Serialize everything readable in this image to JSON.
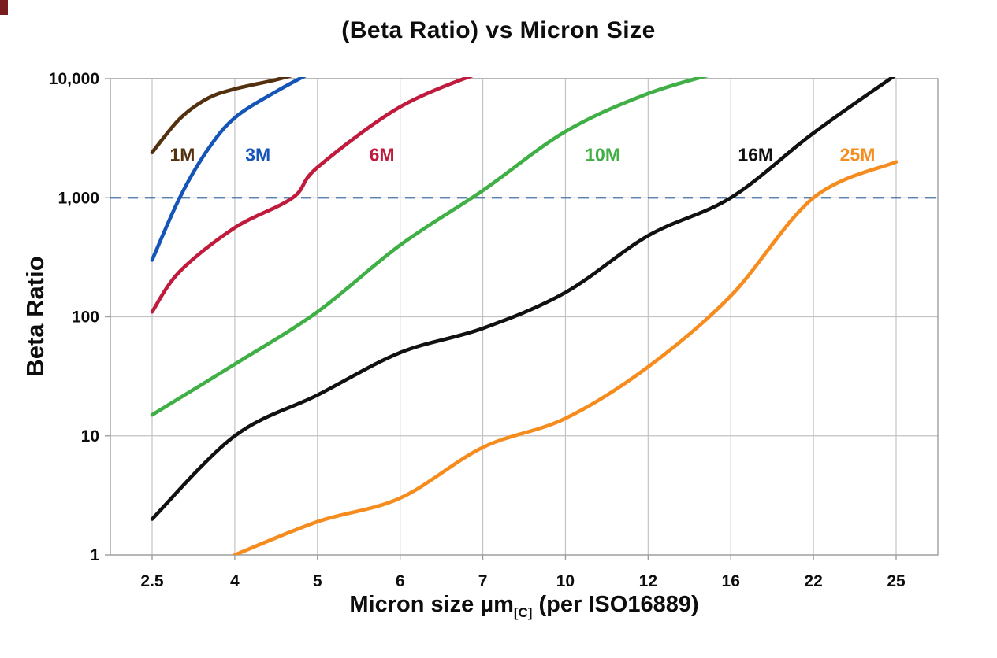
{
  "page": {
    "background": "#ffffff"
  },
  "chart_data": {
    "type": "line",
    "title": "(Beta Ratio) vs Micron Size",
    "ylabel": "Beta Ratio",
    "xlabel_main": "Micron size µm",
    "xlabel_sub": "[C]",
    "xlabel_rest": " (per ISO16889)",
    "x_scale": "categorical",
    "categories": [
      2.5,
      4,
      5,
      6,
      7,
      10,
      12,
      16,
      22,
      25
    ],
    "x_tick_labels": [
      "2.5",
      "4",
      "5",
      "6",
      "7",
      "10",
      "12",
      "16",
      "22",
      "25"
    ],
    "y_scale": "log",
    "ylim": [
      1,
      10000
    ],
    "y_ticks": [
      1,
      10,
      100,
      1000,
      10000
    ],
    "y_tick_labels": [
      "1",
      "10",
      "100",
      "1,000",
      "10,000"
    ],
    "grid": true,
    "legend_position": "inline-labels",
    "reference_line": {
      "y": 1000,
      "style": "dashed",
      "color": "#4472a4"
    },
    "colors": {
      "grid": "#c3c3c3",
      "axis": "#9e9e9e",
      "text": "#0d0d0d"
    },
    "series": [
      {
        "name": "1M",
        "color": "#53300e",
        "label_pos": {
          "x": 3.05,
          "y": 2300
        },
        "points": [
          [
            2.5,
            2400
          ],
          [
            3,
            4600
          ],
          [
            3.5,
            6800
          ],
          [
            4,
            8200
          ],
          [
            4.5,
            9800
          ],
          [
            4.85,
            11500
          ]
        ]
      },
      {
        "name": "3M",
        "color": "#1655b8",
        "label_pos": {
          "x": 4.28,
          "y": 2300
        },
        "points": [
          [
            2.5,
            300
          ],
          [
            3,
            1000
          ],
          [
            3.5,
            2500
          ],
          [
            4,
            4700
          ],
          [
            4.5,
            7800
          ],
          [
            4.95,
            11500
          ]
        ]
      },
      {
        "name": "6M",
        "color": "#c01b3c",
        "label_pos": {
          "x": 5.78,
          "y": 2300
        },
        "points": [
          [
            2.5,
            110
          ],
          [
            3,
            240
          ],
          [
            4,
            560
          ],
          [
            4.7,
            1000
          ],
          [
            5,
            1800
          ],
          [
            6,
            5800
          ],
          [
            7,
            11500
          ]
        ]
      },
      {
        "name": "10M",
        "color": "#3faf46",
        "label_pos": {
          "x": 10.9,
          "y": 2300
        },
        "points": [
          [
            2.5,
            15
          ],
          [
            4,
            40
          ],
          [
            5,
            110
          ],
          [
            6,
            400
          ],
          [
            7,
            1150
          ],
          [
            10,
            3600
          ],
          [
            12,
            7500
          ],
          [
            15.6,
            11500
          ]
        ]
      },
      {
        "name": "16M",
        "color": "#111111",
        "label_pos": {
          "x": 17.8,
          "y": 2300
        },
        "points": [
          [
            2.5,
            2
          ],
          [
            4,
            10
          ],
          [
            5,
            22
          ],
          [
            6,
            50
          ],
          [
            7,
            80
          ],
          [
            10,
            160
          ],
          [
            12,
            480
          ],
          [
            16,
            1000
          ],
          [
            22,
            3500
          ],
          [
            25,
            10800
          ]
        ]
      },
      {
        "name": "25M",
        "color": "#f78c1e",
        "label_pos": {
          "x": 23.6,
          "y": 2300
        },
        "points": [
          [
            4,
            1
          ],
          [
            5,
            1.9
          ],
          [
            6,
            3
          ],
          [
            7,
            8
          ],
          [
            10,
            14
          ],
          [
            12,
            38
          ],
          [
            16,
            150
          ],
          [
            22,
            1000
          ],
          [
            25,
            2000
          ]
        ]
      }
    ]
  }
}
